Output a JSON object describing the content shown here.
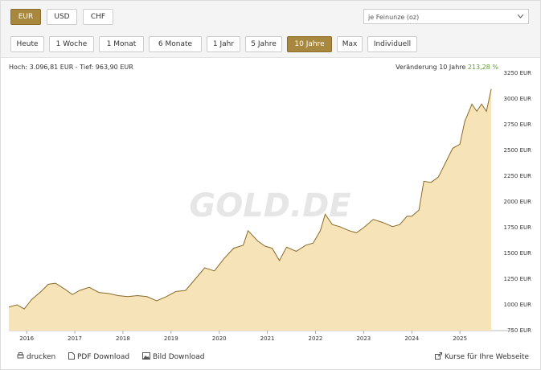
{
  "currency_buttons": [
    {
      "label": "EUR",
      "active": true
    },
    {
      "label": "USD",
      "active": false
    },
    {
      "label": "CHF",
      "active": false
    }
  ],
  "unit_select": "je Feinunze (oz)",
  "range_buttons": [
    {
      "label": "Heute",
      "active": false
    },
    {
      "label": "1 Woche",
      "active": false
    },
    {
      "label": "1 Monat",
      "active": false
    },
    {
      "label": "6 Monate",
      "active": false
    },
    {
      "label": "1 Jahr",
      "active": false
    },
    {
      "label": "5 Jahre",
      "active": false
    },
    {
      "label": "10 Jahre",
      "active": true
    },
    {
      "label": "Max",
      "active": false
    },
    {
      "label": "Individuell",
      "active": false
    }
  ],
  "high_low": "Hoch: 3.096,81 EUR - Tief: 963,90 EUR",
  "change_label": "Veränderung 10 Jahre",
  "change_value": "213,28 %",
  "footer_links": [
    "drucken",
    "PDF Download",
    "Bild Download",
    "Kurse für Ihre Webseite"
  ],
  "chart_data": {
    "type": "area",
    "watermark": "GOLD.DE",
    "color": "#8a6a2a",
    "fill_color": "#f6e4b8",
    "grid": false,
    "x": [
      2015.63,
      2015.8,
      2015.95,
      2016.1,
      2016.3,
      2016.45,
      2016.6,
      2016.8,
      2016.95,
      2017.1,
      2017.3,
      2017.5,
      2017.7,
      2017.9,
      2018.1,
      2018.3,
      2018.5,
      2018.7,
      2018.9,
      2019.1,
      2019.3,
      2019.5,
      2019.7,
      2019.9,
      2020.1,
      2020.3,
      2020.5,
      2020.6,
      2020.8,
      2020.95,
      2021.1,
      2021.25,
      2021.4,
      2021.6,
      2021.8,
      2021.95,
      2022.1,
      2022.2,
      2022.35,
      2022.5,
      2022.7,
      2022.85,
      2023.0,
      2023.2,
      2023.4,
      2023.6,
      2023.75,
      2023.9,
      2024.0,
      2024.15,
      2024.25,
      2024.4,
      2024.55,
      2024.7,
      2024.85,
      2025.0,
      2025.1,
      2025.25,
      2025.35,
      2025.45,
      2025.55,
      2025.65
    ],
    "values": [
      980,
      1000,
      960,
      1050,
      1130,
      1200,
      1210,
      1150,
      1100,
      1140,
      1170,
      1120,
      1110,
      1090,
      1080,
      1090,
      1080,
      1040,
      1080,
      1130,
      1140,
      1250,
      1360,
      1330,
      1450,
      1550,
      1580,
      1720,
      1620,
      1570,
      1550,
      1430,
      1560,
      1520,
      1580,
      1600,
      1720,
      1880,
      1780,
      1760,
      1720,
      1700,
      1750,
      1830,
      1800,
      1760,
      1780,
      1860,
      1860,
      1920,
      2200,
      2190,
      2240,
      2380,
      2520,
      2560,
      2780,
      2950,
      2880,
      2950,
      2880,
      3097
    ],
    "xlim": [
      2015.63,
      2026.15
    ],
    "xticks": [
      2016,
      2017,
      2018,
      2019,
      2020,
      2021,
      2022,
      2023,
      2024,
      2025
    ],
    "ylim": [
      750,
      3250
    ],
    "yticks": [
      {
        "value": 750,
        "label": "750 EUR"
      },
      {
        "value": 1000,
        "label": "1000 EUR"
      },
      {
        "value": 1250,
        "label": "1250 EUR"
      },
      {
        "value": 1500,
        "label": "1500 EUR"
      },
      {
        "value": 1750,
        "label": "1750 EUR"
      },
      {
        "value": 2000,
        "label": "2000 EUR"
      },
      {
        "value": 2250,
        "label": "2250 EUR"
      },
      {
        "value": 2500,
        "label": "2500 EUR"
      },
      {
        "value": 2750,
        "label": "2750 EUR"
      },
      {
        "value": 3000,
        "label": "3000 EUR"
      },
      {
        "value": 3250,
        "label": "3250 EUR"
      }
    ]
  }
}
